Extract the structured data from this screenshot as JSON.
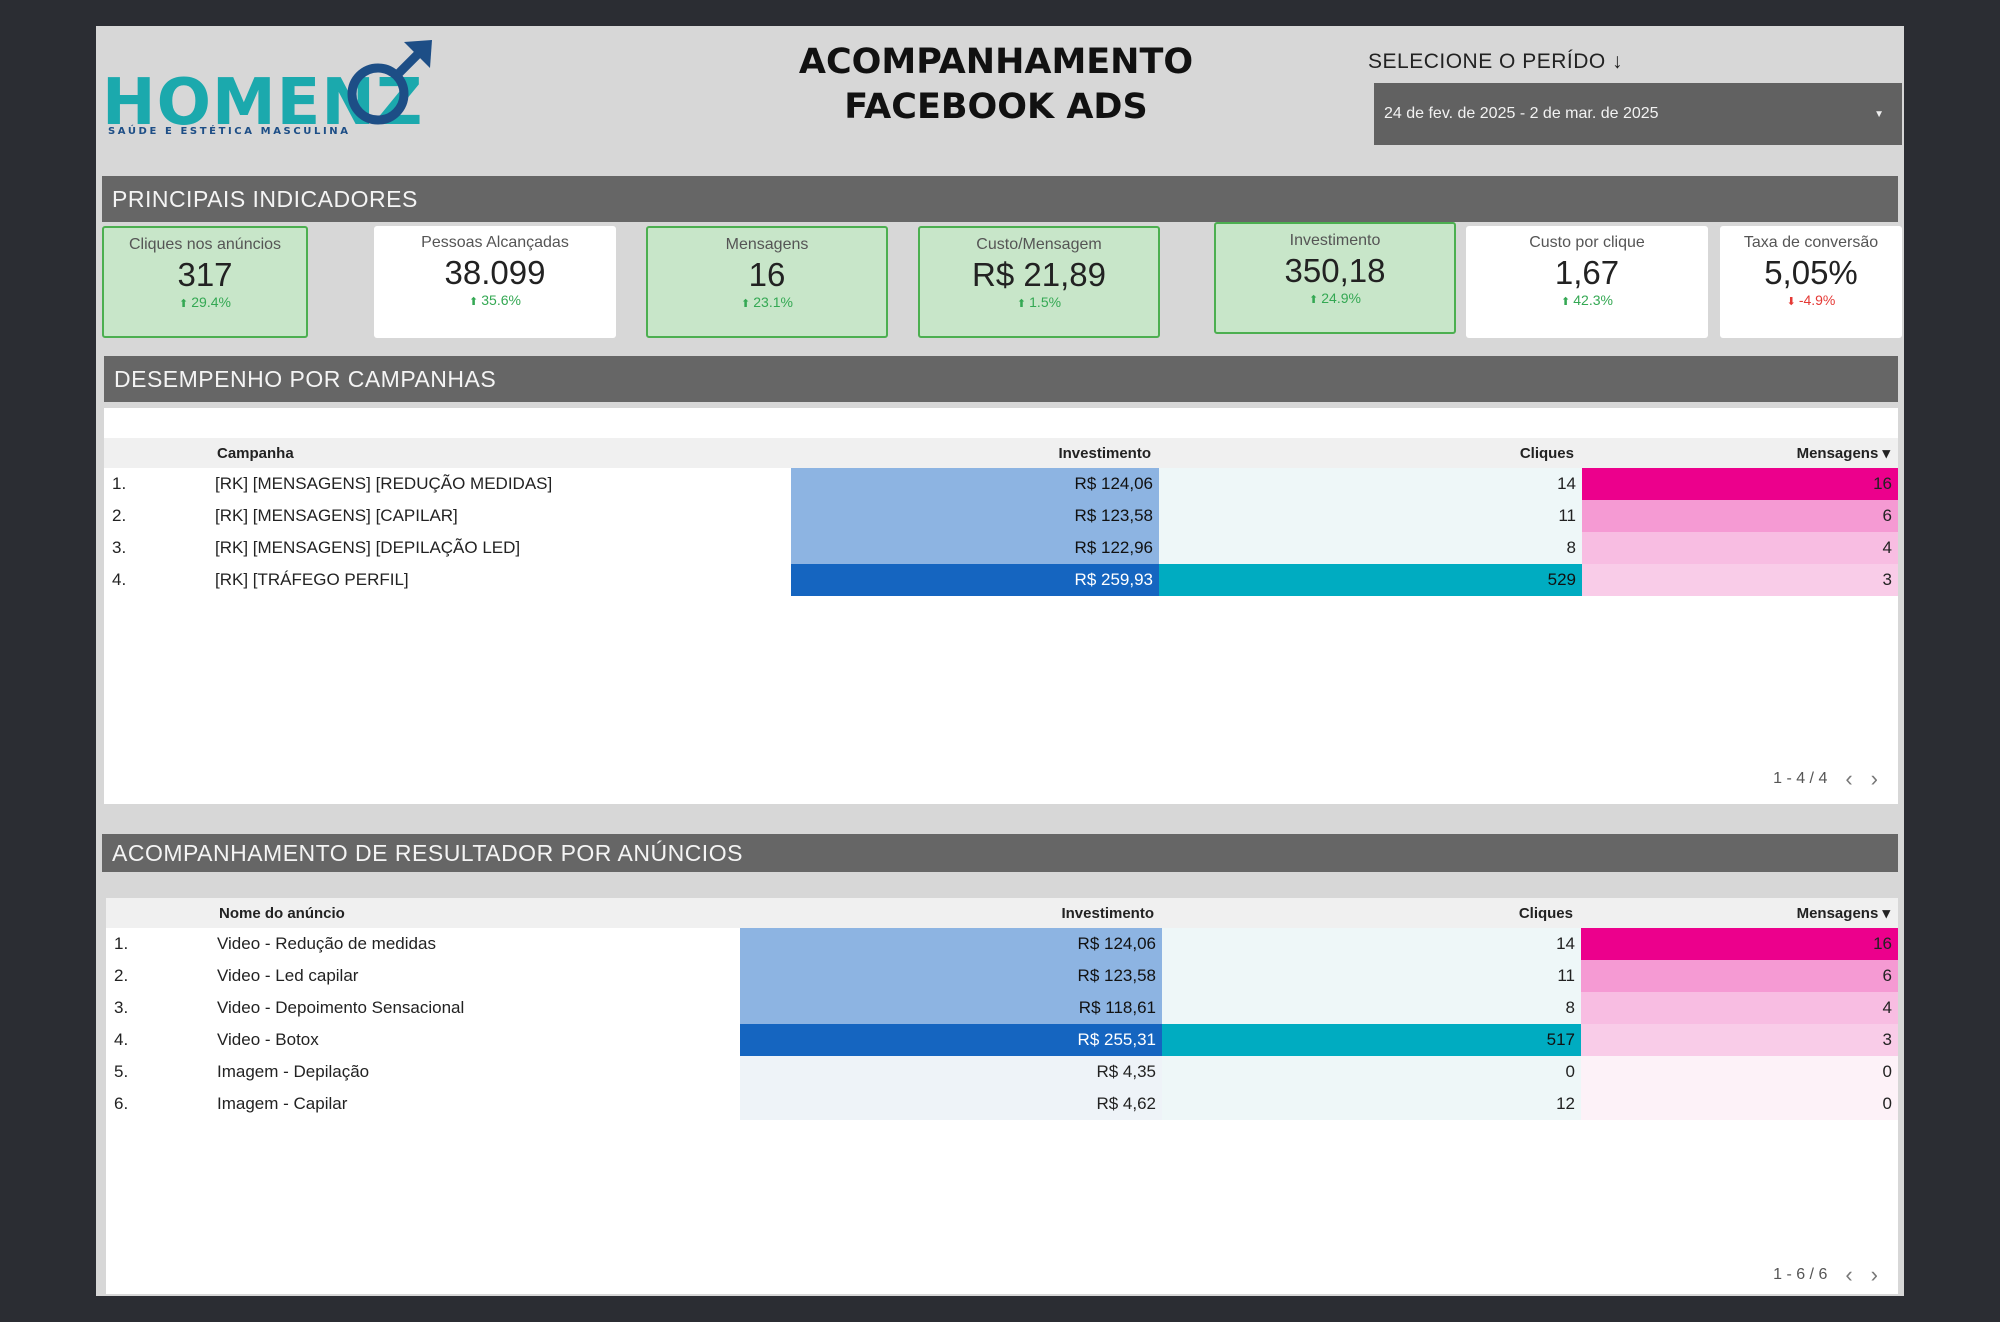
{
  "header": {
    "logo_text": "HOMENZ",
    "logo_tagline": "SAÚDE E ESTÉTICA MASCULINA",
    "title_line1": "ACOMPANHAMENTO",
    "title_line2": "FACEBOOK ADS",
    "period_label": "SELECIONE O PERÍDO ↓",
    "period_value": "24 de fev. de 2025 - 2 de mar. de 2025"
  },
  "colors": {
    "logo": "#1ba9ad",
    "positive": "#34a853",
    "negative": "#e53935",
    "highlight_card": "#c8e6c9"
  },
  "indicators": {
    "title": "PRINCIPAIS INDICADORES",
    "cards": [
      {
        "label": "Cliques nos anúncios",
        "value": "317",
        "delta": "29.4%",
        "direction": "up",
        "highlight": true
      },
      {
        "label": "Pessoas Alcançadas",
        "value": "38.099",
        "delta": "35.6%",
        "direction": "up",
        "highlight": false
      },
      {
        "label": "Mensagens",
        "value": "16",
        "delta": "23.1%",
        "direction": "up",
        "highlight": true
      },
      {
        "label": "Custo/Mensagem",
        "value": "R$ 21,89",
        "delta": "1.5%",
        "direction": "up",
        "highlight": true
      },
      {
        "label": "Investimento",
        "value": "350,18",
        "delta": "24.9%",
        "direction": "up",
        "highlight": true
      },
      {
        "label": "Custo por clique",
        "value": "1,67",
        "delta": "42.3%",
        "direction": "up",
        "highlight": false
      },
      {
        "label": "Taxa de conversão",
        "value": "5,05%",
        "delta": "-4.9%",
        "direction": "down",
        "highlight": false
      }
    ]
  },
  "campaigns": {
    "title": "DESEMPENHO POR CAMPANHAS",
    "columns": {
      "name": "Campanha",
      "investment": "Investimento",
      "clicks": "Cliques",
      "messages": "Mensagens ▾"
    },
    "rows": [
      {
        "idx": "1.",
        "name": "[RK] [MENSAGENS] [REDUÇÃO MEDIDAS]",
        "investment": "R$ 124,06",
        "clicks": "14",
        "messages": "16"
      },
      {
        "idx": "2.",
        "name": "[RK] [MENSAGENS] [CAPILAR]",
        "investment": "R$ 123,58",
        "clicks": "11",
        "messages": "6"
      },
      {
        "idx": "3.",
        "name": "[RK] [MENSAGENS] [DEPILAÇÃO LED]",
        "investment": "R$ 122,96",
        "clicks": "8",
        "messages": "4"
      },
      {
        "idx": "4.",
        "name": "[RK] [TRÁFEGO PERFIL]",
        "investment": "R$ 259,93",
        "clicks": "529",
        "messages": "3"
      }
    ],
    "pager": "1 - 4 / 4"
  },
  "ads": {
    "title": "ACOMPANHAMENTO DE RESULTADOR POR ANÚNCIOS",
    "columns": {
      "name": "Nome do anúncio",
      "investment": "Investimento",
      "clicks": "Cliques",
      "messages": "Mensagens ▾"
    },
    "rows": [
      {
        "idx": "1.",
        "name": "Video - Redução de medidas",
        "investment": "R$ 124,06",
        "clicks": "14",
        "messages": "16"
      },
      {
        "idx": "2.",
        "name": "Video - Led capilar",
        "investment": "R$ 123,58",
        "clicks": "11",
        "messages": "6"
      },
      {
        "idx": "3.",
        "name": "Video - Depoimento Sensacional",
        "investment": "R$ 118,61",
        "clicks": "8",
        "messages": "4"
      },
      {
        "idx": "4.",
        "name": "Video - Botox",
        "investment": "R$ 255,31",
        "clicks": "517",
        "messages": "3"
      },
      {
        "idx": "5.",
        "name": "Imagem - Depilação",
        "investment": "R$ 4,35",
        "clicks": "0",
        "messages": "0"
      },
      {
        "idx": "6.",
        "name": "Imagem - Capilar",
        "investment": "R$ 4,62",
        "clicks": "12",
        "messages": "0"
      }
    ],
    "pager": "1 - 6 / 6"
  }
}
